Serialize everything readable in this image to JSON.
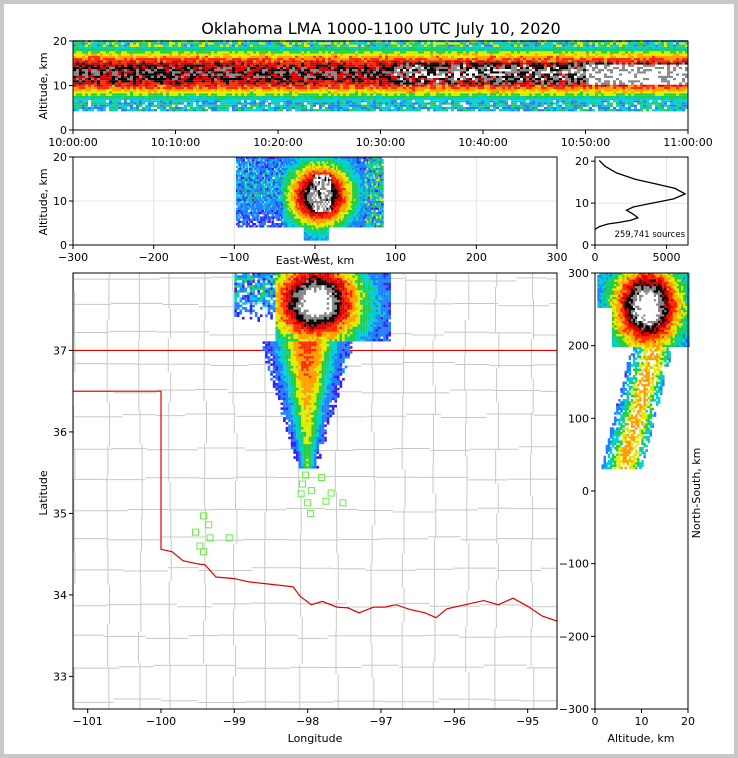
{
  "title": "Oklahoma LMA 1000-1100 UTC July 10, 2020",
  "chart_data": [
    {
      "panel": "altitude-time",
      "type": "heatmap",
      "ylabel": "Altitude, km",
      "xlabel": "",
      "ylim": [
        0,
        20
      ],
      "y_ticks": [
        "0",
        "10",
        "20"
      ],
      "x_ticks": [
        "10:00:00",
        "10:10:00",
        "10:20:00",
        "10:30:00",
        "10:40:00",
        "10:50:00",
        "11:00:00"
      ]
    },
    {
      "panel": "altitude-east-west",
      "type": "heatmap",
      "xlabel": "East-West, km",
      "ylabel": "Altitude, km",
      "xlim": [
        -300,
        300
      ],
      "ylim": [
        0,
        20
      ],
      "x_ticks": [
        "−300",
        "−200",
        "−100",
        "0",
        "100",
        "200",
        "300"
      ],
      "y_ticks": [
        "0",
        "10",
        "20"
      ]
    },
    {
      "panel": "altitude-histogram",
      "type": "line",
      "xlim": [
        0,
        6500
      ],
      "ylim": [
        0,
        21
      ],
      "x_ticks": [
        "0",
        "5000"
      ],
      "y_ticks": [
        "0",
        "10",
        "20"
      ],
      "annotation": "259,741 sources",
      "x": [
        0,
        300,
        900,
        1700,
        2500,
        3000,
        2700,
        2200,
        2700,
        4000,
        5500,
        6300,
        5600,
        4200,
        2800,
        1500,
        700,
        300
      ],
      "y": [
        3.7,
        4.4,
        5.0,
        5.4,
        5.9,
        6.5,
        7.3,
        8.3,
        9.1,
        10.0,
        11.0,
        12.2,
        13.5,
        14.6,
        15.7,
        17.2,
        18.8,
        20.2
      ]
    },
    {
      "panel": "plan-view-map",
      "type": "scatter",
      "xlabel": "Longitude",
      "ylabel": "Latitude",
      "xlim": [
        -101.2,
        -94.6
      ],
      "ylim": [
        32.6,
        37.95
      ],
      "x_ticks": [
        "−101",
        "−100",
        "−99",
        "−98",
        "−97",
        "−96",
        "−95"
      ],
      "y_ticks": [
        "33",
        "34",
        "35",
        "36",
        "37"
      ],
      "stations": [
        {
          "lon": -98.03,
          "lat": 35.47
        },
        {
          "lon": -97.81,
          "lat": 35.44
        },
        {
          "lon": -98.07,
          "lat": 35.36
        },
        {
          "lon": -97.95,
          "lat": 35.28
        },
        {
          "lon": -98.09,
          "lat": 35.24
        },
        {
          "lon": -97.68,
          "lat": 35.25
        },
        {
          "lon": -98.0,
          "lat": 35.13
        },
        {
          "lon": -97.75,
          "lat": 35.15
        },
        {
          "lon": -97.52,
          "lat": 35.13
        },
        {
          "lon": -97.96,
          "lat": 35.0
        },
        {
          "lon": -99.42,
          "lat": 34.97
        },
        {
          "lon": -99.35,
          "lat": 34.86
        },
        {
          "lon": -99.53,
          "lat": 34.77
        },
        {
          "lon": -99.33,
          "lat": 34.7
        },
        {
          "lon": -99.07,
          "lat": 34.7
        },
        {
          "lon": -99.47,
          "lat": 34.6
        },
        {
          "lon": -99.42,
          "lat": 34.53
        }
      ]
    },
    {
      "panel": "north-south-altitude",
      "type": "heatmap",
      "xlabel": "Altitude, km",
      "ylabel": "North-South, km",
      "xlim": [
        0,
        20
      ],
      "ylim": [
        -300,
        300
      ],
      "x_ticks": [
        "0",
        "10",
        "20"
      ],
      "y_ticks": [
        "−300",
        "−200",
        "−100",
        "0",
        "100",
        "200",
        "300"
      ]
    }
  ],
  "colors": {
    "border": "#e00000",
    "county": "#c8c8c8",
    "station": "#66ee44",
    "palette": [
      "#3b1cf2",
      "#1f7fff",
      "#00d0d0",
      "#22cc44",
      "#ddee00",
      "#ffa000",
      "#ff2a00",
      "#d80000",
      "#000000",
      "#888888",
      "#ffffff"
    ]
  }
}
